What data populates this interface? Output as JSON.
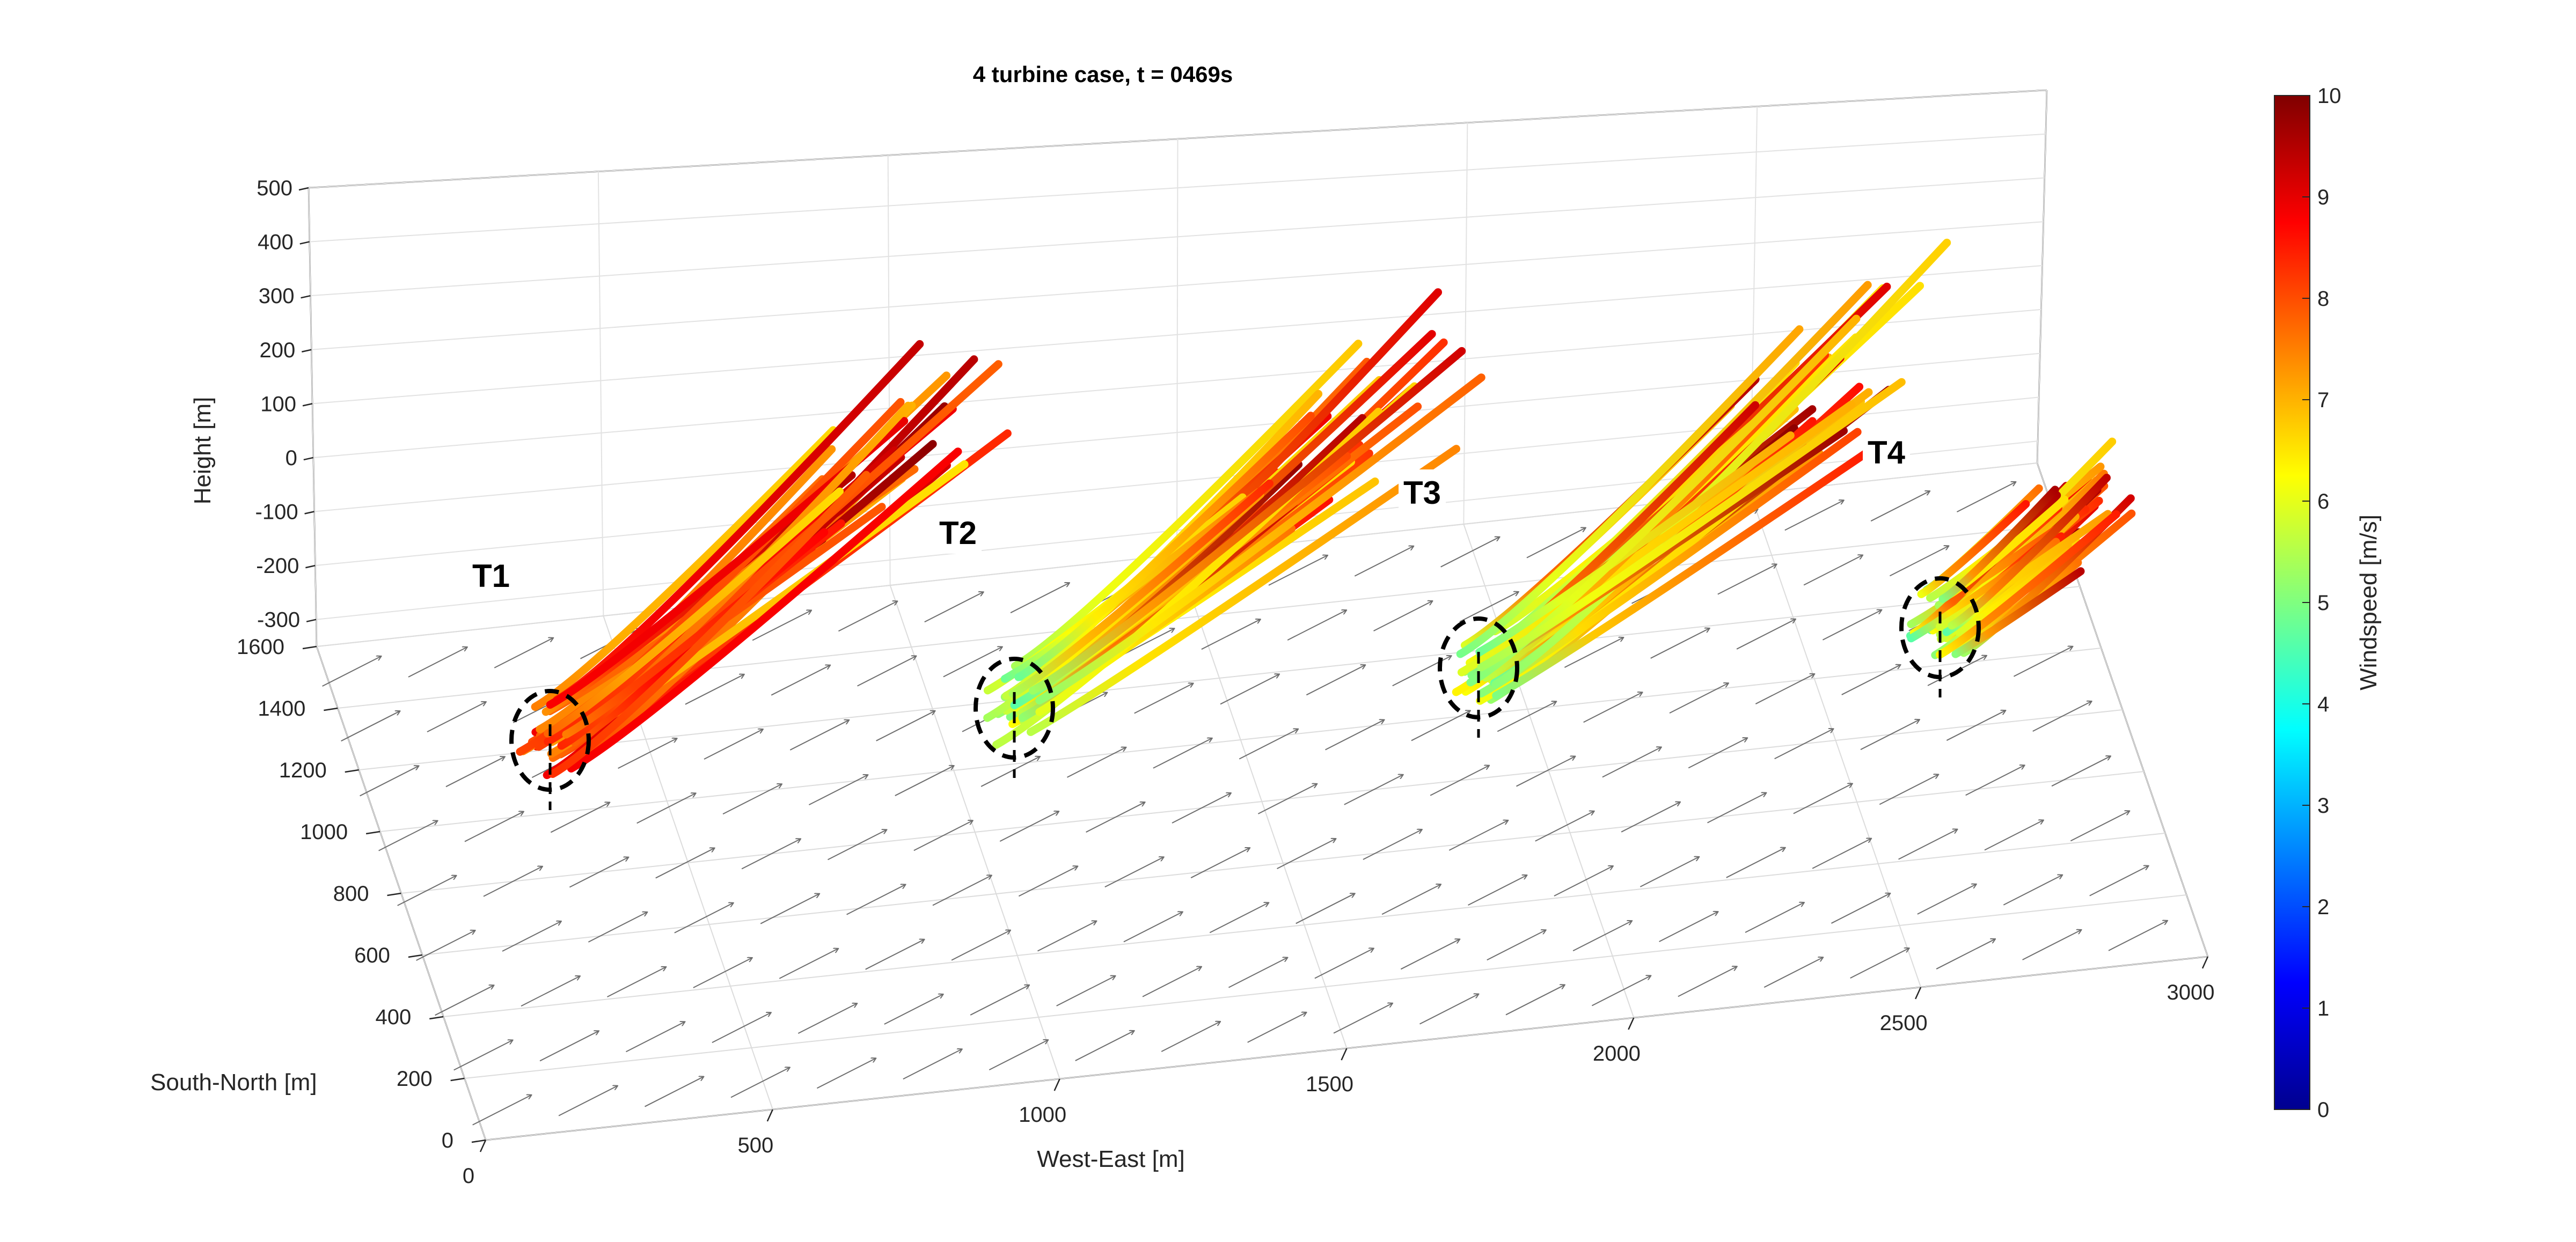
{
  "chart_data": {
    "type": "3d-streamtube-quiver",
    "title": "4 turbine case, t = 0469s",
    "xlabel": "West-East [m]",
    "ylabel": "South-North [m]",
    "zlabel": "Height [m]",
    "x_ticks": [
      "0",
      "500",
      "1000",
      "1500",
      "2000",
      "2500",
      "3000"
    ],
    "y_ticks": [
      "0",
      "200",
      "400",
      "600",
      "800",
      "1000",
      "1200",
      "1400",
      "1600"
    ],
    "z_ticks": [
      "500",
      "400",
      "300",
      "200",
      "100",
      "0",
      "-100",
      "-200",
      "-300"
    ],
    "xlim": [
      0,
      3000
    ],
    "ylim": [
      0,
      1600
    ],
    "zlim": [
      -350,
      500
    ],
    "grid": true,
    "colorbar": {
      "label": "Windspeed [m/s]",
      "ticks": [
        "0",
        "1",
        "2",
        "3",
        "4",
        "5",
        "6",
        "7",
        "8",
        "9",
        "10"
      ],
      "range": [
        0,
        10
      ],
      "colormap": "jet",
      "placement": "right"
    },
    "turbines": [
      {
        "label": "T1"
      },
      {
        "label": "T2"
      },
      {
        "label": "T3"
      },
      {
        "label": "T4"
      }
    ],
    "wind_direction": "south-west toward north-east"
  }
}
